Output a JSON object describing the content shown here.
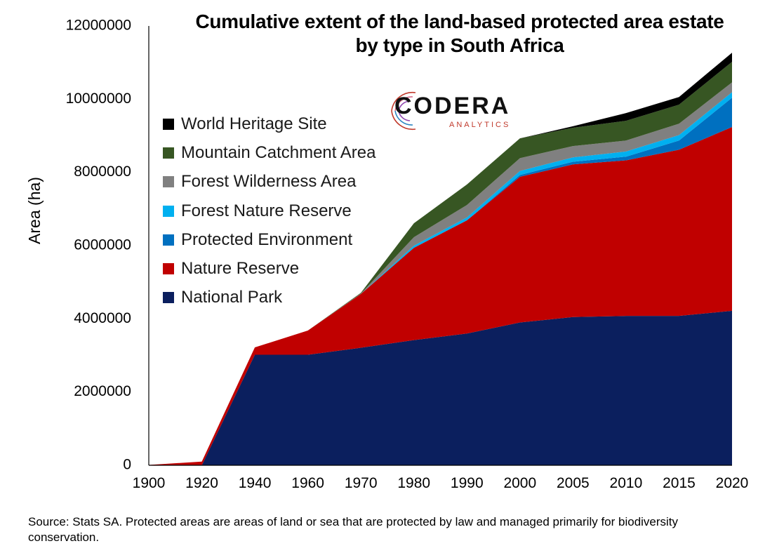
{
  "chart_data": {
    "type": "area",
    "stacked": true,
    "title_line1": "Cumulative extent of the land-based protected area estate",
    "title_line2": "by type in South Africa",
    "xlabel": "",
    "ylabel": "Area (ha)",
    "ylim": [
      0,
      12000000
    ],
    "yticks": [
      "0",
      "2000000",
      "4000000",
      "6000000",
      "8000000",
      "10000000",
      "12000000"
    ],
    "categories": [
      "1900",
      "1920",
      "1940",
      "1960",
      "1970",
      "1980",
      "1990",
      "2000",
      "2005",
      "2010",
      "2015",
      "2020"
    ],
    "grid": false,
    "legend_position": "upper-left",
    "series": [
      {
        "name": "National Park",
        "color": "#0b1f5e",
        "values": [
          0,
          0,
          3020000,
          3020000,
          3210000,
          3420000,
          3600000,
          3900000,
          4050000,
          4080000,
          4080000,
          4220000
        ]
      },
      {
        "name": "Nature Reserve",
        "color": "#c00000",
        "values": [
          10000,
          100000,
          200000,
          660000,
          1470000,
          2520000,
          3090000,
          3980000,
          4170000,
          4250000,
          4540000,
          5020000
        ]
      },
      {
        "name": "Protected Environment",
        "color": "#0070c0",
        "values": [
          0,
          0,
          0,
          0,
          0,
          0,
          0,
          50000,
          70000,
          100000,
          250000,
          800000
        ]
      },
      {
        "name": "Forest Nature Reserve",
        "color": "#00b0f0",
        "values": [
          0,
          0,
          0,
          0,
          0,
          60000,
          80000,
          110000,
          120000,
          140000,
          150000,
          150000
        ]
      },
      {
        "name": "Forest Wilderness Area",
        "color": "#808080",
        "values": [
          0,
          0,
          0,
          0,
          10000,
          230000,
          340000,
          350000,
          310000,
          300000,
          310000,
          270000
        ]
      },
      {
        "name": "Mountain Catchment Area",
        "color": "#375623",
        "values": [
          0,
          0,
          0,
          0,
          20000,
          380000,
          560000,
          540000,
          500000,
          540000,
          520000,
          560000
        ]
      },
      {
        "name": "World Heritage Site",
        "color": "#000000",
        "values": [
          0,
          0,
          0,
          0,
          0,
          0,
          0,
          0,
          40000,
          210000,
          210000,
          250000
        ]
      }
    ]
  },
  "legend_order": [
    6,
    5,
    4,
    3,
    2,
    1,
    0
  ],
  "logo": {
    "word": "CODERA",
    "sub": "ANALYTICS"
  },
  "source_note": "Source: Stats SA. Protected areas are areas of land or sea that are protected by law and managed primarily for biodiversity conservation."
}
